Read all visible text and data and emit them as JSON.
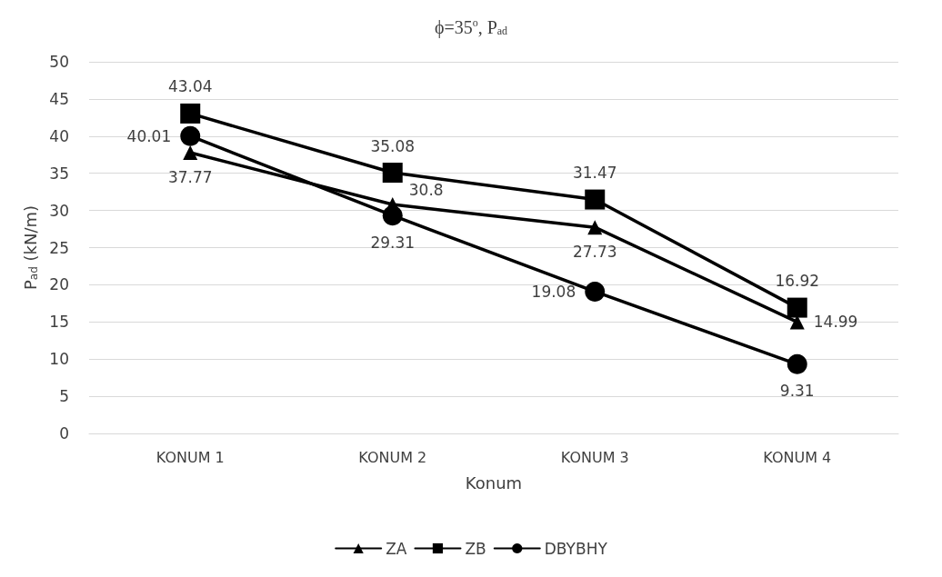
{
  "chart_data": {
    "type": "line",
    "title": "ϕ=35$^{o}$, P$_{ad}$",
    "xlabel": "Konum",
    "ylabel": "P$_{ad}$ (kN/m)",
    "categories": [
      "KONUM 1",
      "KONUM 2",
      "KONUM 3",
      "KONUM 4"
    ],
    "series": [
      {
        "name": "ZA",
        "color": "#000000",
        "marker": "triangle",
        "values": [
          37.77,
          30.8,
          27.73,
          14.99
        ]
      },
      {
        "name": "ZB",
        "color": "#000000",
        "marker": "square",
        "values": [
          43.04,
          35.08,
          31.47,
          16.92
        ]
      },
      {
        "name": "DBYBHY",
        "color": "#000000",
        "marker": "circle",
        "values": [
          40.01,
          29.31,
          19.08,
          9.31
        ]
      }
    ],
    "ylim": [
      0,
      50
    ],
    "yticks": [
      0,
      5,
      10,
      15,
      20,
      25,
      30,
      35,
      40,
      45,
      50
    ],
    "grid": "y",
    "legend": "bottom",
    "data_labels": true,
    "line_style": "solid"
  }
}
